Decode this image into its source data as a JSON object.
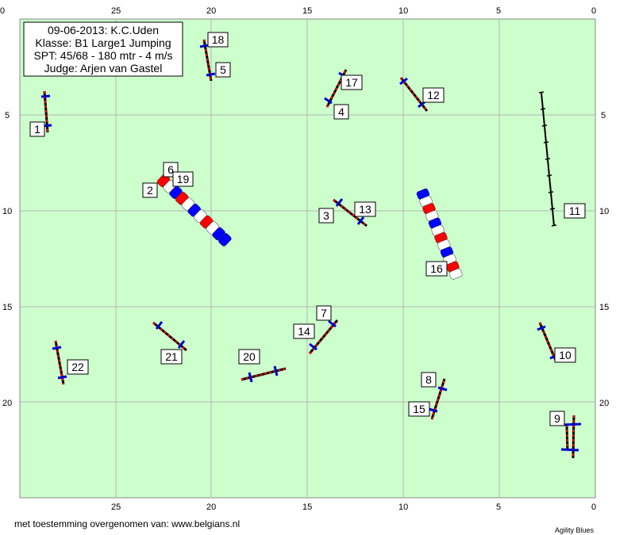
{
  "info": {
    "date_place": "09-06-2013: K.C.Uden",
    "class": "Klasse: B1 Large1 Jumping",
    "spt": "SPT: 45/68 - 180 mtr - 4 m/s",
    "judge": "Judge: Arjen van Gastel"
  },
  "axes": {
    "x_ticks": [
      "25",
      "20",
      "15",
      "10",
      "5"
    ],
    "x_corner_labels": [
      "0",
      "0"
    ],
    "y_ticks": [
      "5",
      "10",
      "15",
      "20"
    ]
  },
  "colors": {
    "field": "#ccffcc",
    "grid": "#b4b4b4",
    "pole": "#0000cc",
    "stripe_red": "#ff0000",
    "stripe_white": "#ffffff",
    "tunnel_blue": "#0000ff",
    "tunnel_red": "#ff0000"
  },
  "obstacles": [
    {
      "id": "hurdle-1",
      "type": "hurdle",
      "numbers": [
        "1"
      ]
    },
    {
      "id": "hurdle-5-18",
      "type": "hurdle",
      "numbers": [
        "18",
        "5"
      ]
    },
    {
      "id": "hurdle-4-17",
      "type": "hurdle",
      "numbers": [
        "17",
        "4"
      ]
    },
    {
      "id": "hurdle-12",
      "type": "hurdle",
      "numbers": [
        "12"
      ]
    },
    {
      "id": "hurdle-3-13",
      "type": "hurdle",
      "numbers": [
        "3",
        "13"
      ]
    },
    {
      "id": "tunnel-2-6-19",
      "type": "tunnel",
      "numbers": [
        "6",
        "19",
        "2"
      ]
    },
    {
      "id": "tunnel-16",
      "type": "tunnel",
      "numbers": [
        "16"
      ]
    },
    {
      "id": "dogwalk-11",
      "type": "dogwalk",
      "numbers": [
        "11"
      ]
    },
    {
      "id": "hurdle-7-14",
      "type": "hurdle",
      "numbers": [
        "7",
        "14"
      ]
    },
    {
      "id": "hurdle-21",
      "type": "hurdle",
      "numbers": [
        "21"
      ]
    },
    {
      "id": "hurdle-22",
      "type": "hurdle",
      "numbers": [
        "22"
      ]
    },
    {
      "id": "hurdle-20",
      "type": "hurdle",
      "numbers": [
        "20"
      ]
    },
    {
      "id": "hurdle-10",
      "type": "hurdle",
      "numbers": [
        "10"
      ]
    },
    {
      "id": "hurdle-8-15",
      "type": "hurdle",
      "numbers": [
        "8",
        "15"
      ]
    },
    {
      "id": "double-9",
      "type": "double-hurdle",
      "numbers": [
        "9"
      ]
    }
  ],
  "footer": {
    "credit": "met toestemming overgenomen van: www.belgians.nl",
    "brand": "Agility Blues"
  }
}
